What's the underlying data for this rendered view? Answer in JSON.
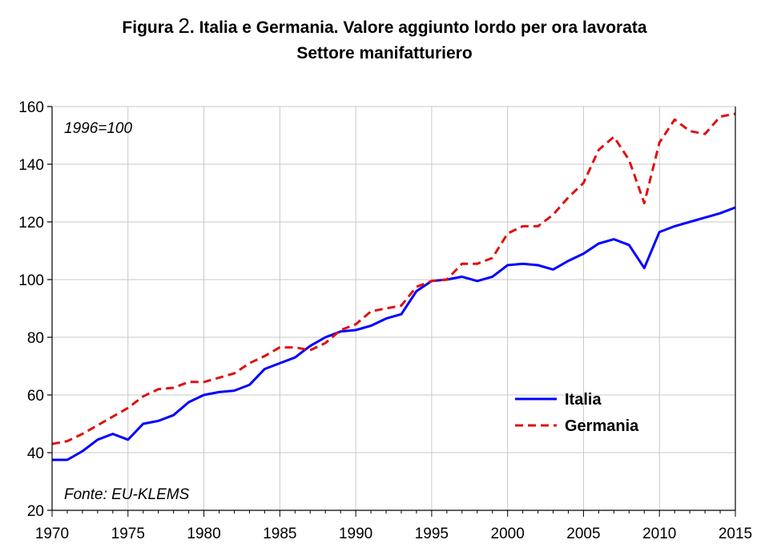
{
  "chart_data": {
    "type": "line",
    "title_prefix": "Figura",
    "title_number": "2",
    "title_rest": ". Italia e Germania. Valore aggiunto lordo per ora lavorata",
    "subtitle": "Settore manifatturiero",
    "index_note": "1996=100",
    "source_note": "Fonte: EU-KLEMS",
    "xlim": [
      1970,
      2015
    ],
    "ylim": [
      20,
      160
    ],
    "x_ticks": [
      1970,
      1975,
      1980,
      1985,
      1990,
      1995,
      2000,
      2005,
      2010,
      2015
    ],
    "y_ticks": [
      20,
      40,
      60,
      80,
      100,
      120,
      140,
      160
    ],
    "grid": true,
    "legend_position": "lower-right",
    "x": [
      1970,
      1971,
      1972,
      1973,
      1974,
      1975,
      1976,
      1977,
      1978,
      1979,
      1980,
      1981,
      1982,
      1983,
      1984,
      1985,
      1986,
      1987,
      1988,
      1989,
      1990,
      1991,
      1992,
      1993,
      1994,
      1995,
      1996,
      1997,
      1998,
      1999,
      2000,
      2001,
      2002,
      2003,
      2004,
      2005,
      2006,
      2007,
      2008,
      2009,
      2010,
      2011,
      2012,
      2013,
      2014,
      2015
    ],
    "series": [
      {
        "name": "Italia",
        "color": "#0000ff",
        "style": "solid",
        "values": [
          37.5,
          37.5,
          40.5,
          44.5,
          46.5,
          44.5,
          50,
          51,
          53,
          57.5,
          60,
          61,
          61.5,
          63.5,
          69,
          71,
          73,
          77,
          80,
          82,
          82.5,
          84,
          86.5,
          88,
          96,
          99.5,
          100,
          101,
          99.5,
          101,
          105,
          105.5,
          105,
          103.5,
          106.5,
          109,
          112.5,
          114,
          112,
          104,
          116.5,
          118.5,
          120,
          121.5,
          123,
          125
        ]
      },
      {
        "name": "Germania",
        "color": "#e01010",
        "style": "dashed",
        "values": [
          43,
          44,
          46.5,
          49.5,
          52.5,
          55.5,
          59.5,
          62,
          62.5,
          64.5,
          64.5,
          66,
          67.5,
          71,
          73.5,
          76.5,
          76.5,
          75.5,
          78,
          82.5,
          84.5,
          89,
          90,
          91,
          97.5,
          99.5,
          100,
          105.5,
          105.5,
          107.5,
          116,
          118.5,
          118.5,
          122.5,
          128.5,
          133.5,
          145,
          149.5,
          141.5,
          126.5,
          147.5,
          155.5,
          151.5,
          150.5,
          156.5,
          157.5
        ]
      }
    ]
  }
}
